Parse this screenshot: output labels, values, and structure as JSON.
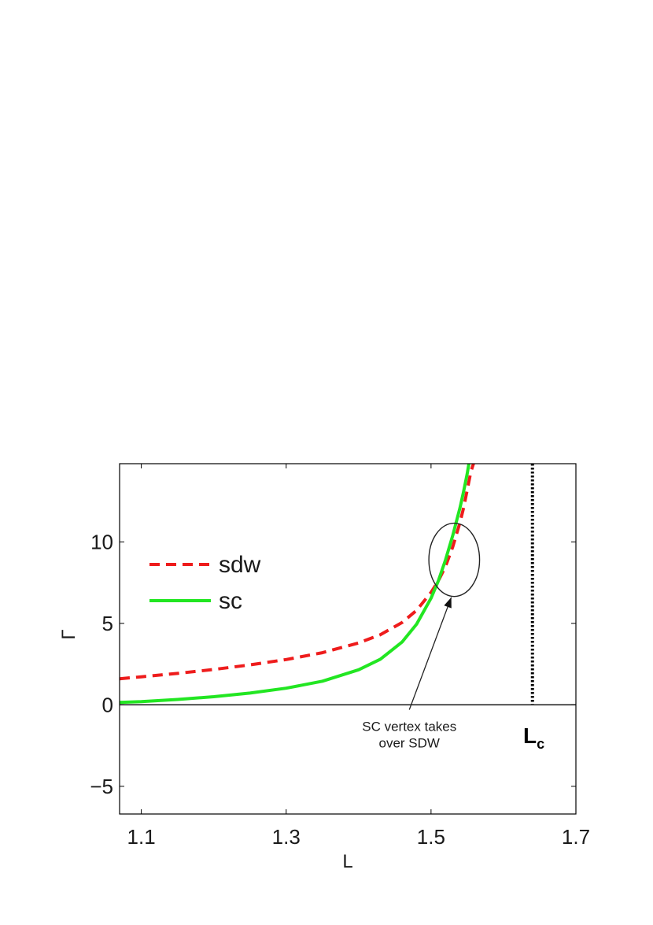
{
  "chart_data": {
    "type": "line",
    "xlabel": "L",
    "ylabel": "Γ",
    "xlim": [
      1.07,
      1.7
    ],
    "ylim": [
      -6.7,
      14.8
    ],
    "xticks": [
      "1.1",
      "1.3",
      "1.5",
      "1.7"
    ],
    "xtick_values": [
      1.1,
      1.3,
      1.5,
      1.7
    ],
    "yticks": [
      "10",
      "5",
      "0",
      "−5"
    ],
    "ytick_values": [
      10,
      5,
      0,
      -5
    ],
    "grid": false,
    "legend": {
      "placement": "upper-left",
      "entries": [
        "sdw",
        "sc"
      ]
    },
    "series": [
      {
        "name": "sdw",
        "style": "dashed",
        "color": "#ee1c1c",
        "x": [
          1.07,
          1.1,
          1.15,
          1.2,
          1.25,
          1.3,
          1.35,
          1.4,
          1.43,
          1.46,
          1.48,
          1.5,
          1.51,
          1.52,
          1.53,
          1.54,
          1.545,
          1.55,
          1.555,
          1.56
        ],
        "y": [
          1.6,
          1.72,
          1.93,
          2.17,
          2.45,
          2.78,
          3.2,
          3.8,
          4.3,
          5.05,
          5.8,
          6.9,
          7.6,
          8.5,
          9.7,
          11.2,
          12.1,
          13.2,
          14.3,
          15.0
        ]
      },
      {
        "name": "sc",
        "style": "solid",
        "color": "#22e622",
        "x": [
          1.07,
          1.1,
          1.15,
          1.2,
          1.25,
          1.3,
          1.35,
          1.4,
          1.43,
          1.46,
          1.48,
          1.5,
          1.51,
          1.52,
          1.53,
          1.54,
          1.545,
          1.55,
          1.553
        ],
        "y": [
          0.15,
          0.2,
          0.33,
          0.5,
          0.72,
          1.02,
          1.45,
          2.15,
          2.8,
          3.85,
          4.95,
          6.55,
          7.6,
          8.9,
          10.4,
          12.1,
          13.1,
          14.2,
          15.0
        ]
      }
    ],
    "reference_lines": [
      {
        "orientation": "horizontal",
        "y": 0,
        "style": "solid",
        "color": "#000000"
      },
      {
        "orientation": "vertical",
        "x": 1.64,
        "y_from": 0.05,
        "y_to": 14.8,
        "style": "dotted",
        "color": "#000000"
      }
    ],
    "annotations": [
      {
        "text_lines": [
          "SC vertex takes",
          "over SDW"
        ],
        "arrow_to": [
          1.528,
          6.6
        ],
        "arrow_from": [
          1.47,
          -0.3
        ]
      }
    ],
    "circle_marker": {
      "cx": 1.532,
      "cy": 8.9,
      "rx": 0.035,
      "ry": 2.25
    },
    "lc_label": {
      "main": "L",
      "sub": "c"
    }
  }
}
